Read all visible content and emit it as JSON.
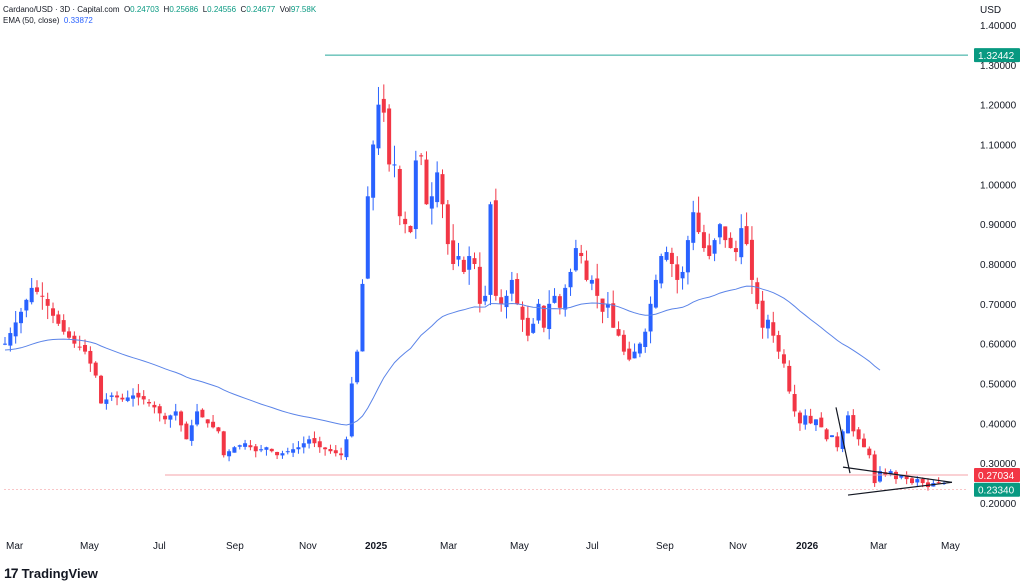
{
  "header": {
    "symbol": "Cardano/USD · 3D · Capital.com",
    "open_label": "O",
    "open": "0.24703",
    "high_label": "H",
    "high": "0.25686",
    "low_label": "L",
    "low": "0.24556",
    "close_label": "C",
    "close": "0.24677",
    "vol_label": "Vol",
    "volume": "97.58K",
    "ema_label": "EMA (50, close)",
    "ema_value": "0.33872"
  },
  "currency": "USD",
  "branding": "TradingView",
  "colors": {
    "up": "#2962ff",
    "down": "#f23645",
    "ema": "#5b84e8",
    "resistance": "#26a69a",
    "support": "#f5a3a8",
    "tag_red": "#f23645",
    "tag_teal": "#089981"
  },
  "chart_data": {
    "type": "candlestick",
    "y_ticks": [
      "1.40000",
      "1.30000",
      "1.20000",
      "1.10000",
      "1.00000",
      "0.90000",
      "0.80000",
      "0.70000",
      "0.60000",
      "0.50000",
      "0.40000",
      "0.30000",
      "0.20000"
    ],
    "x_ticks": [
      "Mar",
      "May",
      "Jul",
      "Sep",
      "Nov",
      "2025",
      "Mar",
      "May",
      "Jul",
      "Sep",
      "Nov",
      "2026",
      "Mar",
      "May"
    ],
    "ylim": [
      0.175,
      1.42
    ],
    "price_tags": [
      {
        "label": "1.32442",
        "value": 1.32442,
        "color": "#089981"
      },
      {
        "label": "0.27034",
        "value": 0.27034,
        "color": "#f23645"
      },
      {
        "label": "0.23340",
        "value": 0.2334,
        "color": "#089981"
      }
    ],
    "horizontal_lines": [
      {
        "name": "resistance",
        "value": 1.32442
      },
      {
        "name": "support",
        "value": 0.27034
      }
    ],
    "pattern": "symmetrical triangle",
    "ema_period": 50,
    "price_path": [
      [
        0,
        0.6
      ],
      [
        3,
        0.68
      ],
      [
        5,
        0.74
      ],
      [
        7,
        0.72
      ],
      [
        9,
        0.67
      ],
      [
        11,
        0.63
      ],
      [
        13,
        0.6
      ],
      [
        15,
        0.58
      ],
      [
        17,
        0.52
      ],
      [
        18,
        0.45
      ],
      [
        20,
        0.47
      ],
      [
        22,
        0.46
      ],
      [
        24,
        0.47
      ],
      [
        26,
        0.46
      ],
      [
        28,
        0.44
      ],
      [
        30,
        0.41
      ],
      [
        32,
        0.43
      ],
      [
        34,
        0.36
      ],
      [
        36,
        0.43
      ],
      [
        38,
        0.4
      ],
      [
        40,
        0.38
      ],
      [
        41,
        0.32
      ],
      [
        43,
        0.34
      ],
      [
        45,
        0.35
      ],
      [
        47,
        0.33
      ],
      [
        49,
        0.34
      ],
      [
        51,
        0.32
      ],
      [
        53,
        0.33
      ],
      [
        55,
        0.34
      ],
      [
        57,
        0.36
      ],
      [
        59,
        0.34
      ],
      [
        61,
        0.33
      ],
      [
        63,
        0.32
      ],
      [
        64,
        0.36
      ],
      [
        65,
        0.5
      ],
      [
        66,
        0.58
      ],
      [
        67,
        0.75
      ],
      [
        68,
        0.97
      ],
      [
        69,
        1.1
      ],
      [
        70,
        1.2
      ],
      [
        71,
        1.18
      ],
      [
        72,
        1.05
      ],
      [
        73,
        1.05
      ],
      [
        74,
        0.92
      ],
      [
        75,
        0.9
      ],
      [
        76,
        0.88
      ],
      [
        77,
        1.06
      ],
      [
        78,
        1.07
      ],
      [
        79,
        0.95
      ],
      [
        80,
        0.97
      ],
      [
        81,
        1.03
      ],
      [
        82,
        0.95
      ],
      [
        83,
        0.85
      ],
      [
        84,
        0.8
      ],
      [
        85,
        0.82
      ],
      [
        86,
        0.78
      ],
      [
        87,
        0.82
      ],
      [
        88,
        0.8
      ],
      [
        89,
        0.7
      ],
      [
        90,
        0.72
      ],
      [
        91,
        0.95
      ],
      [
        92,
        0.72
      ],
      [
        93,
        0.7
      ],
      [
        94,
        0.72
      ],
      [
        95,
        0.76
      ],
      [
        96,
        0.7
      ],
      [
        97,
        0.66
      ],
      [
        98,
        0.62
      ],
      [
        99,
        0.65
      ],
      [
        100,
        0.7
      ],
      [
        101,
        0.64
      ],
      [
        102,
        0.7
      ],
      [
        103,
        0.72
      ],
      [
        104,
        0.69
      ],
      [
        105,
        0.74
      ],
      [
        106,
        0.78
      ],
      [
        107,
        0.84
      ],
      [
        108,
        0.82
      ],
      [
        109,
        0.76
      ],
      [
        110,
        0.76
      ],
      [
        111,
        0.72
      ],
      [
        112,
        0.68
      ],
      [
        113,
        0.7
      ],
      [
        114,
        0.64
      ],
      [
        115,
        0.62
      ],
      [
        116,
        0.58
      ],
      [
        117,
        0.56
      ],
      [
        118,
        0.58
      ],
      [
        119,
        0.6
      ],
      [
        120,
        0.63
      ],
      [
        121,
        0.7
      ],
      [
        122,
        0.76
      ],
      [
        123,
        0.82
      ],
      [
        124,
        0.83
      ],
      [
        125,
        0.8
      ],
      [
        126,
        0.76
      ],
      [
        127,
        0.78
      ],
      [
        128,
        0.86
      ],
      [
        129,
        0.93
      ],
      [
        130,
        0.88
      ],
      [
        131,
        0.84
      ],
      [
        132,
        0.82
      ],
      [
        133,
        0.86
      ],
      [
        134,
        0.9
      ],
      [
        135,
        0.86
      ],
      [
        136,
        0.84
      ],
      [
        137,
        0.83
      ],
      [
        138,
        0.89
      ],
      [
        139,
        0.85
      ],
      [
        140,
        0.76
      ],
      [
        141,
        0.7
      ],
      [
        142,
        0.64
      ],
      [
        143,
        0.66
      ],
      [
        144,
        0.62
      ],
      [
        145,
        0.58
      ],
      [
        146,
        0.55
      ],
      [
        147,
        0.48
      ],
      [
        148,
        0.43
      ],
      [
        149,
        0.4
      ],
      [
        150,
        0.42
      ],
      [
        151,
        0.4
      ],
      [
        152,
        0.41
      ],
      [
        153,
        0.39
      ],
      [
        154,
        0.36
      ],
      [
        155,
        0.37
      ],
      [
        156,
        0.34
      ],
      [
        157,
        0.38
      ],
      [
        158,
        0.42
      ],
      [
        159,
        0.38
      ],
      [
        160,
        0.36
      ],
      [
        161,
        0.34
      ],
      [
        162,
        0.32
      ],
      [
        163,
        0.25
      ],
      [
        164,
        0.28
      ],
      [
        165,
        0.27
      ],
      [
        166,
        0.28
      ],
      [
        167,
        0.26
      ],
      [
        168,
        0.27
      ],
      [
        169,
        0.26
      ],
      [
        170,
        0.25
      ],
      [
        171,
        0.26
      ],
      [
        172,
        0.25
      ],
      [
        173,
        0.24
      ],
      [
        174,
        0.25
      ],
      [
        175,
        0.25
      ],
      [
        176,
        0.25
      ]
    ]
  }
}
